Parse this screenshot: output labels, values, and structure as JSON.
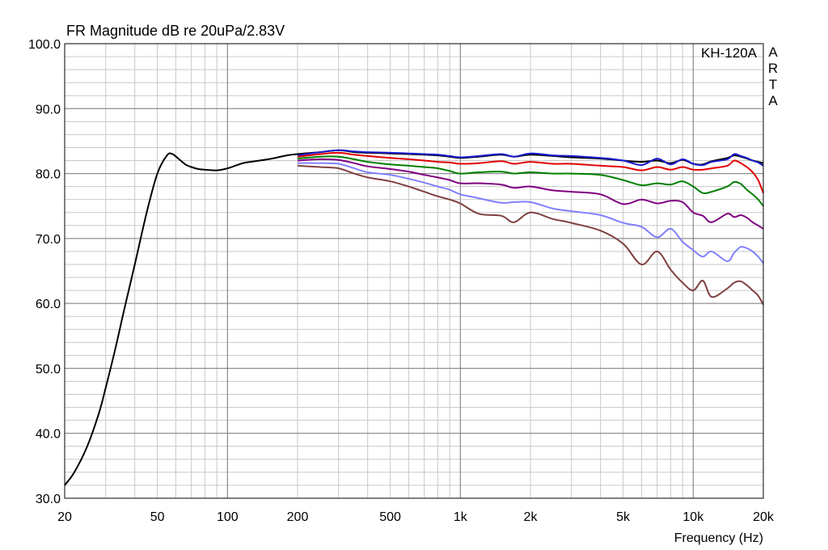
{
  "chart_data": {
    "type": "line",
    "title": "FR Magnitude dB re 20uPa/2.83V",
    "xlabel": "Frequency (Hz)",
    "ylabel": "",
    "legend_text": "KH-120A",
    "watermark": "ARTA",
    "x_scale": "log",
    "xlim": [
      20,
      20000
    ],
    "ylim": [
      30,
      100
    ],
    "x_ticks": [
      {
        "value": 20,
        "label": "20"
      },
      {
        "value": 50,
        "label": "50"
      },
      {
        "value": 100,
        "label": "100"
      },
      {
        "value": 200,
        "label": "200"
      },
      {
        "value": 500,
        "label": "500"
      },
      {
        "value": 1000,
        "label": "1k"
      },
      {
        "value": 2000,
        "label": "2k"
      },
      {
        "value": 5000,
        "label": "5k"
      },
      {
        "value": 10000,
        "label": "10k"
      },
      {
        "value": 20000,
        "label": "20k"
      }
    ],
    "y_ticks": [
      {
        "value": 30,
        "label": "30.0"
      },
      {
        "value": 40,
        "label": "40.0"
      },
      {
        "value": 50,
        "label": "50.0"
      },
      {
        "value": 60,
        "label": "60.0"
      },
      {
        "value": 70,
        "label": "70.0"
      },
      {
        "value": 80,
        "label": "80.0"
      },
      {
        "value": 90,
        "label": "90.0"
      },
      {
        "value": 100,
        "label": "100.0"
      }
    ],
    "grid": true,
    "series": [
      {
        "color": "#000000",
        "x": [
          20,
          22,
          25,
          28,
          30,
          33,
          36,
          40,
          45,
          50,
          55,
          58,
          62,
          66,
          70,
          75,
          80,
          90,
          100,
          110,
          120,
          150,
          180,
          200,
          250,
          300,
          350,
          400,
          500,
          600,
          700,
          800,
          900,
          1000,
          1200,
          1500,
          1700,
          2000,
          2500,
          3000,
          4000,
          5000,
          6000,
          7000,
          8000,
          9000,
          10000,
          11000,
          12000,
          14000,
          15000,
          16000,
          17000,
          18000,
          19000,
          20000
        ],
        "y": [
          32,
          34,
          38,
          43,
          47,
          53,
          59,
          66,
          74,
          80,
          82.8,
          83,
          82.2,
          81.4,
          81,
          80.7,
          80.6,
          80.5,
          80.8,
          81.3,
          81.7,
          82.2,
          82.8,
          83,
          83.3,
          83.6,
          83.3,
          83.2,
          83.1,
          83.0,
          82.9,
          82.8,
          82.6,
          82.4,
          82.6,
          82.9,
          82.6,
          82.9,
          82.7,
          82.5,
          82.3,
          82.0,
          81.8,
          82.0,
          81.6,
          82.1,
          81.5,
          81.4,
          81.9,
          82.4,
          82.8,
          82.6,
          82.3,
          82.0,
          81.8,
          81.6
        ]
      },
      {
        "color": "#1a1ad0",
        "x": [
          200,
          250,
          300,
          350,
          400,
          500,
          600,
          700,
          800,
          900,
          1000,
          1200,
          1500,
          1700,
          2000,
          2500,
          3000,
          4000,
          5000,
          6000,
          7000,
          8000,
          9000,
          10000,
          11000,
          12000,
          14000,
          15000,
          16000,
          17000,
          18000,
          19000,
          20000
        ],
        "y": [
          82.8,
          83.3,
          83.6,
          83.4,
          83.3,
          83.2,
          83.1,
          83.0,
          82.9,
          82.7,
          82.5,
          82.7,
          83.0,
          82.6,
          83.1,
          82.8,
          82.7,
          82.4,
          82.0,
          81.3,
          82.3,
          81.4,
          82.2,
          81.5,
          81.3,
          81.8,
          82.2,
          83.0,
          82.7,
          82.4,
          82.0,
          81.7,
          81.2
        ]
      },
      {
        "color": "#e00000",
        "x": [
          200,
          250,
          300,
          350,
          400,
          500,
          600,
          700,
          800,
          900,
          1000,
          1200,
          1500,
          1700,
          2000,
          2500,
          3000,
          4000,
          5000,
          6000,
          7000,
          8000,
          9000,
          10000,
          11000,
          12000,
          14000,
          15000,
          16000,
          17000,
          18000,
          19000,
          20000
        ],
        "y": [
          82.6,
          83.0,
          83.2,
          82.9,
          82.7,
          82.4,
          82.2,
          82.0,
          81.8,
          81.7,
          81.5,
          81.6,
          81.9,
          81.5,
          81.8,
          81.5,
          81.5,
          81.2,
          81.0,
          80.5,
          81.0,
          80.6,
          81.0,
          80.6,
          80.6,
          80.8,
          81.2,
          82.0,
          81.6,
          81.0,
          80.2,
          79.0,
          77.0
        ]
      },
      {
        "color": "#008000",
        "x": [
          200,
          250,
          300,
          350,
          400,
          500,
          600,
          700,
          800,
          900,
          1000,
          1200,
          1500,
          1700,
          2000,
          2500,
          3000,
          4000,
          5000,
          6000,
          7000,
          8000,
          9000,
          10000,
          11000,
          12000,
          14000,
          15000,
          16000,
          17000,
          18000,
          19000,
          20000
        ],
        "y": [
          82.3,
          82.6,
          82.6,
          82.2,
          81.8,
          81.4,
          81.2,
          81.0,
          80.8,
          80.4,
          80.0,
          80.2,
          80.3,
          80.0,
          80.2,
          80.0,
          80.0,
          79.8,
          79.0,
          78.2,
          78.5,
          78.3,
          78.8,
          78.0,
          77.0,
          77.2,
          78.0,
          78.7,
          78.4,
          77.5,
          76.8,
          76.0,
          75.0
        ]
      },
      {
        "color": "#800080",
        "x": [
          200,
          250,
          300,
          350,
          400,
          500,
          600,
          700,
          800,
          900,
          1000,
          1200,
          1500,
          1700,
          2000,
          2500,
          3000,
          4000,
          5000,
          6000,
          7000,
          8000,
          9000,
          10000,
          11000,
          12000,
          14000,
          15000,
          16000,
          17000,
          18000,
          19000,
          20000
        ],
        "y": [
          82.0,
          82.2,
          82.1,
          81.6,
          81.1,
          80.7,
          80.3,
          79.8,
          79.4,
          79.0,
          78.5,
          78.5,
          78.3,
          77.8,
          78.0,
          77.4,
          77.2,
          76.8,
          75.3,
          76.0,
          75.4,
          75.8,
          75.6,
          74.0,
          73.5,
          72.5,
          73.8,
          73.3,
          73.6,
          73.2,
          72.5,
          72.0,
          71.5
        ]
      },
      {
        "color": "#8080ff",
        "x": [
          200,
          250,
          300,
          350,
          400,
          500,
          600,
          700,
          800,
          900,
          1000,
          1200,
          1500,
          1700,
          2000,
          2500,
          3000,
          4000,
          5000,
          6000,
          7000,
          8000,
          9000,
          10000,
          11000,
          12000,
          14000,
          15000,
          16000,
          17000,
          18000,
          19000,
          20000
        ],
        "y": [
          81.6,
          81.6,
          81.5,
          80.8,
          80.2,
          79.8,
          79.2,
          78.6,
          78.0,
          77.5,
          76.8,
          76.2,
          75.5,
          75.6,
          75.6,
          74.6,
          74.2,
          73.6,
          72.4,
          71.8,
          70.2,
          71.5,
          69.5,
          68.2,
          67.2,
          68.0,
          66.5,
          67.8,
          68.7,
          68.5,
          68.0,
          67.2,
          66.2
        ]
      },
      {
        "color": "#804040",
        "x": [
          200,
          250,
          300,
          350,
          400,
          500,
          600,
          700,
          800,
          900,
          1000,
          1200,
          1500,
          1700,
          2000,
          2500,
          3000,
          4000,
          5000,
          6000,
          7000,
          8000,
          9000,
          10000,
          11000,
          12000,
          14000,
          15000,
          16000,
          17000,
          18000,
          19000,
          20000
        ],
        "y": [
          81.2,
          81.0,
          80.8,
          80.0,
          79.4,
          78.8,
          78.0,
          77.2,
          76.5,
          76.0,
          75.4,
          73.8,
          73.5,
          72.5,
          74.0,
          73.0,
          72.4,
          71.2,
          69.2,
          66.0,
          68.0,
          65.2,
          63.2,
          62.0,
          63.5,
          61.0,
          62.3,
          63.2,
          63.4,
          62.8,
          62.0,
          61.2,
          59.8
        ]
      }
    ]
  }
}
